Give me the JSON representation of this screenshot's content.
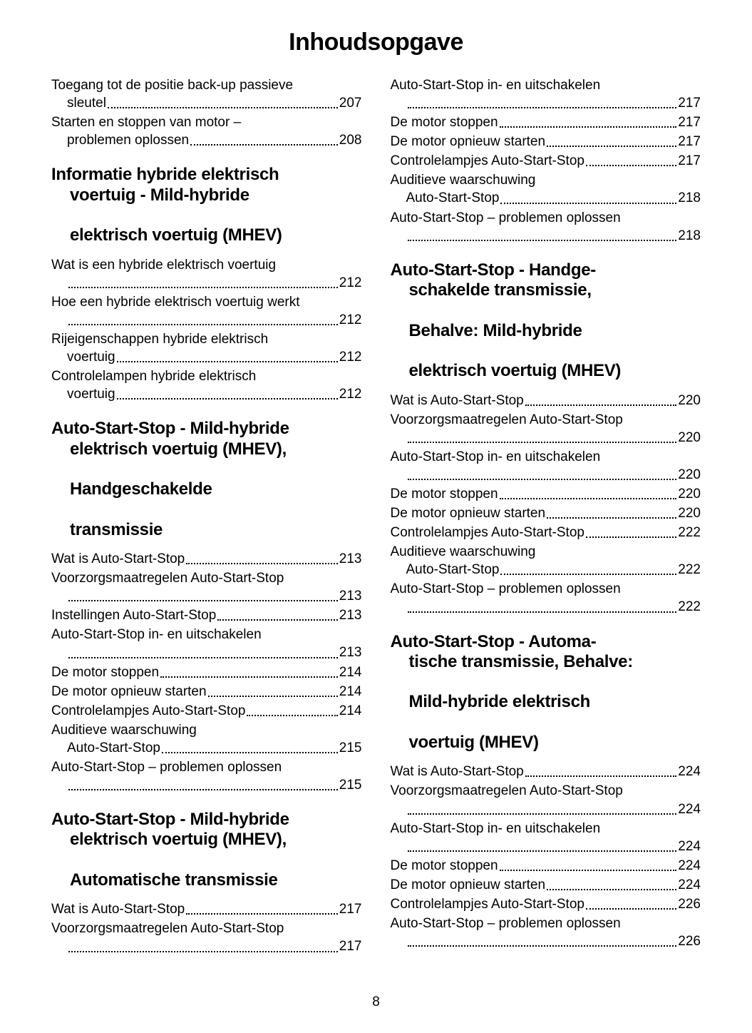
{
  "title": "Inhoudsopgave",
  "page_number": "8",
  "left": {
    "pre_entries": [
      {
        "label_line1": "Toegang tot de positie back-up passieve",
        "label_line2": "sleutel",
        "page": "207"
      },
      {
        "label_line1": "Starten en stoppen van motor –",
        "label_line2": "problemen oplossen",
        "page": "208"
      }
    ],
    "sections": [
      {
        "heading_lines": [
          "Informatie hybride elektrisch",
          "voertuig - Mild-hybride",
          "elektrisch voertuig (MHEV)"
        ],
        "entries": [
          {
            "label_line1": "Wat is een hybride elektrisch voertuig",
            "label_line2": "",
            "page": "212"
          },
          {
            "label_line1": "Hoe een hybride elektrisch voertuig werkt",
            "label_line2": "",
            "page": "212"
          },
          {
            "label_line1": "Rijeigenschappen hybride elektrisch",
            "label_line2": "voertuig",
            "page": "212"
          },
          {
            "label_line1": "Controlelampen hybride elektrisch",
            "label_line2": "voertuig",
            "page": "212"
          }
        ]
      },
      {
        "heading_lines": [
          "Auto-Start-Stop - Mild-hybride",
          "elektrisch voertuig (MHEV),",
          "Handgeschakelde",
          "transmissie"
        ],
        "entries": [
          {
            "label_line1": "Wat is Auto-Start-Stop",
            "page": "213"
          },
          {
            "label_line1": "Voorzorgsmaatregelen Auto-Start-Stop",
            "label_line2": "",
            "page": "213"
          },
          {
            "label_line1": "Instellingen Auto-Start-Stop",
            "page": "213"
          },
          {
            "label_line1": "Auto-Start-Stop in- en uitschakelen",
            "label_line2": "",
            "page": "213"
          },
          {
            "label_line1": "De motor stoppen",
            "page": "214"
          },
          {
            "label_line1": "De motor opnieuw starten",
            "page": "214"
          },
          {
            "label_line1": "Controlelampjes Auto-Start-Stop",
            "page": "214"
          },
          {
            "label_line1": "Auditieve waarschuwing",
            "label_line2": "Auto-Start-Stop",
            "page": "215"
          },
          {
            "label_line1": "Auto-Start-Stop – problemen oplossen",
            "label_line2": "",
            "page": "215"
          }
        ]
      },
      {
        "heading_lines": [
          "Auto-Start-Stop - Mild-hybride",
          "elektrisch voertuig (MHEV),",
          "Automatische transmissie"
        ],
        "entries": [
          {
            "label_line1": "Wat is Auto-Start-Stop",
            "page": "217"
          },
          {
            "label_line1": "Voorzorgsmaatregelen Auto-Start-Stop",
            "label_line2": "",
            "page": "217"
          }
        ]
      }
    ]
  },
  "right": {
    "pre_entries": [
      {
        "label_line1": "Auto-Start-Stop in- en uitschakelen",
        "label_line2": "",
        "page": "217"
      },
      {
        "label_line1": "De motor stoppen",
        "page": "217"
      },
      {
        "label_line1": "De motor opnieuw starten",
        "page": "217"
      },
      {
        "label_line1": "Controlelampjes Auto-Start-Stop",
        "page": "217"
      },
      {
        "label_line1": "Auditieve waarschuwing",
        "label_line2": "Auto-Start-Stop",
        "page": "218"
      },
      {
        "label_line1": "Auto-Start-Stop – problemen oplossen",
        "label_line2": "",
        "page": "218"
      }
    ],
    "sections": [
      {
        "heading_lines": [
          "Auto-Start-Stop - Handge-",
          "schakelde transmissie,",
          "Behalve: Mild-hybride",
          "elektrisch voertuig (MHEV)"
        ],
        "entries": [
          {
            "label_line1": "Wat is Auto-Start-Stop",
            "page": "220"
          },
          {
            "label_line1": "Voorzorgsmaatregelen Auto-Start-Stop",
            "label_line2": "",
            "page": "220"
          },
          {
            "label_line1": "Auto-Start-Stop in- en uitschakelen",
            "label_line2": "",
            "page": "220"
          },
          {
            "label_line1": "De motor stoppen",
            "page": "220"
          },
          {
            "label_line1": "De motor opnieuw starten",
            "page": "220"
          },
          {
            "label_line1": "Controlelampjes Auto-Start-Stop",
            "page": "222"
          },
          {
            "label_line1": "Auditieve waarschuwing",
            "label_line2": "Auto-Start-Stop",
            "page": "222"
          },
          {
            "label_line1": "Auto-Start-Stop – problemen oplossen",
            "label_line2": "",
            "page": "222"
          }
        ]
      },
      {
        "heading_lines": [
          "Auto-Start-Stop - Automa-",
          "tische transmissie, Behalve:",
          "Mild-hybride elektrisch",
          "voertuig (MHEV)"
        ],
        "entries": [
          {
            "label_line1": "Wat is Auto-Start-Stop",
            "page": "224"
          },
          {
            "label_line1": "Voorzorgsmaatregelen Auto-Start-Stop",
            "label_line2": "",
            "page": "224"
          },
          {
            "label_line1": "Auto-Start-Stop in- en uitschakelen",
            "label_line2": "",
            "page": "224"
          },
          {
            "label_line1": "De motor stoppen",
            "page": "224"
          },
          {
            "label_line1": "De motor opnieuw starten",
            "page": "224"
          },
          {
            "label_line1": "Controlelampjes Auto-Start-Stop",
            "page": "226"
          },
          {
            "label_line1": "Auto-Start-Stop – problemen oplossen",
            "label_line2": "",
            "page": "226"
          }
        ]
      }
    ]
  }
}
